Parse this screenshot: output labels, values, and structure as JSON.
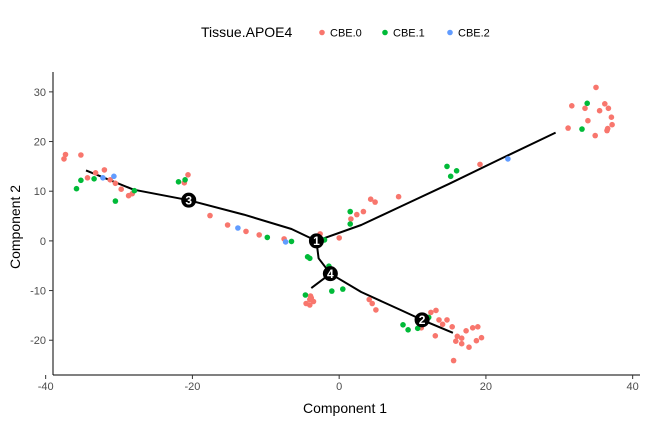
{
  "chart_data": {
    "type": "scatter",
    "xlabel": "Component 1",
    "ylabel": "Component 2",
    "xlim": [
      -39,
      41
    ],
    "ylim": [
      -27,
      34
    ],
    "xticks": [
      -40,
      -20,
      0,
      20,
      40
    ],
    "yticks": [
      -20,
      -10,
      0,
      10,
      20,
      30
    ],
    "grid": false,
    "legend": {
      "title": "Tissue.APOE4",
      "position": "top",
      "entries": [
        {
          "label": "CBE.0",
          "color": "#F8766D"
        },
        {
          "label": "CBE.1",
          "color": "#00BA38"
        },
        {
          "label": "CBE.2",
          "color": "#619CFF"
        }
      ]
    },
    "series": [
      {
        "name": "CBE.0",
        "color": "#F8766D",
        "points": [
          [
            -37.5,
            16.5
          ],
          [
            -37.3,
            17.4
          ],
          [
            -35.2,
            17.3
          ],
          [
            -34.3,
            12.7
          ],
          [
            -33.2,
            13.7
          ],
          [
            -32.0,
            14.3
          ],
          [
            -31.2,
            12.3
          ],
          [
            -30.5,
            11.6
          ],
          [
            -29.7,
            10.4
          ],
          [
            -28.7,
            9.1
          ],
          [
            -28.2,
            9.5
          ],
          [
            -20.6,
            13.3
          ],
          [
            -21.1,
            11.7
          ],
          [
            -17.6,
            5.1
          ],
          [
            -15.2,
            3.2
          ],
          [
            -12.7,
            1.9
          ],
          [
            -10.9,
            1.2
          ],
          [
            -7.5,
            0.4
          ],
          [
            -3.9,
            -11.1
          ],
          [
            -4.0,
            -11.8
          ],
          [
            -4.5,
            -12.6
          ],
          [
            -4.0,
            -12.9
          ],
          [
            -3.5,
            -12.2
          ],
          [
            -3.8,
            -11.5
          ],
          [
            -2.6,
            1.4
          ],
          [
            0.0,
            0.6
          ],
          [
            1.6,
            4.4
          ],
          [
            2.4,
            5.3
          ],
          [
            3.3,
            5.9
          ],
          [
            4.3,
            8.4
          ],
          [
            4.9,
            7.8
          ],
          [
            4.1,
            -11.8
          ],
          [
            4.5,
            -12.6
          ],
          [
            5.0,
            -13.9
          ],
          [
            8.1,
            8.9
          ],
          [
            19.2,
            15.4
          ],
          [
            31.2,
            22.7
          ],
          [
            31.7,
            27.2
          ],
          [
            33.5,
            26.7
          ],
          [
            33.9,
            24.2
          ],
          [
            35.0,
            30.9
          ],
          [
            36.2,
            27.6
          ],
          [
            35.5,
            26.2
          ],
          [
            36.7,
            26.7
          ],
          [
            37.1,
            24.9
          ],
          [
            37.2,
            23.4
          ],
          [
            36.5,
            22.2
          ],
          [
            36.6,
            22.6
          ],
          [
            34.9,
            21.2
          ],
          [
            11.7,
            -15.3
          ],
          [
            12.5,
            -14.4
          ],
          [
            13.2,
            -14.0
          ],
          [
            13.6,
            -15.9
          ],
          [
            14.1,
            -16.8
          ],
          [
            14.7,
            -15.9
          ],
          [
            13.1,
            -19.1
          ],
          [
            15.4,
            -17.3
          ],
          [
            16.1,
            -19.2
          ],
          [
            16.7,
            -19.6
          ],
          [
            17.3,
            -18.1
          ],
          [
            18.2,
            -17.5
          ],
          [
            18.9,
            -17.3
          ],
          [
            16.7,
            -20.7
          ],
          [
            15.9,
            -20.2
          ],
          [
            18.7,
            -20.1
          ],
          [
            19.4,
            -19.5
          ],
          [
            17.7,
            -21.4
          ],
          [
            15.6,
            -24.1
          ],
          [
            11.2,
            -17.5
          ]
        ]
      },
      {
        "name": "CBE.1",
        "color": "#00BA38",
        "points": [
          [
            -35.8,
            10.5
          ],
          [
            -35.2,
            12.2
          ],
          [
            -33.4,
            12.5
          ],
          [
            -30.5,
            8.0
          ],
          [
            -27.9,
            10.1
          ],
          [
            -21.9,
            11.9
          ],
          [
            -21.0,
            12.3
          ],
          [
            -9.8,
            0.7
          ],
          [
            -6.5,
            -0.1
          ],
          [
            -4.6,
            -10.9
          ],
          [
            -4.3,
            -3.2
          ],
          [
            -4.0,
            -3.5
          ],
          [
            -2.7,
            0.5
          ],
          [
            -2.0,
            0.2
          ],
          [
            -1.4,
            -5.1
          ],
          [
            -1.0,
            -10.1
          ],
          [
            0.5,
            -9.7
          ],
          [
            1.5,
            5.9
          ],
          [
            1.5,
            3.4
          ],
          [
            14.7,
            15.0
          ],
          [
            15.2,
            13.0
          ],
          [
            16.0,
            14.1
          ],
          [
            8.7,
            -16.9
          ],
          [
            9.4,
            -17.9
          ],
          [
            10.7,
            -17.6
          ],
          [
            11.2,
            -16.2
          ],
          [
            12.2,
            -15.4
          ],
          [
            33.1,
            22.5
          ],
          [
            33.8,
            27.7
          ]
        ]
      },
      {
        "name": "CBE.2",
        "color": "#619CFF",
        "points": [
          [
            -32.2,
            12.7
          ],
          [
            -30.7,
            13.0
          ],
          [
            -13.8,
            2.6
          ],
          [
            -7.3,
            -0.2
          ],
          [
            23.0,
            16.5
          ]
        ]
      }
    ],
    "trajectory": [
      [
        [
          -34.5,
          14.2
        ],
        [
          -28.0,
          10.3
        ],
        [
          -20.5,
          8.2
        ],
        [
          -13.0,
          5.3
        ],
        [
          -6.5,
          2.4
        ],
        [
          -3.1,
          0.0
        ]
      ],
      [
        [
          -3.1,
          0.0
        ],
        [
          3.0,
          3.2
        ],
        [
          8.5,
          7.0
        ],
        [
          15.0,
          11.5
        ],
        [
          22.0,
          16.5
        ],
        [
          29.5,
          21.8
        ]
      ],
      [
        [
          -3.1,
          0.0
        ],
        [
          -2.8,
          -3.5
        ],
        [
          -1.2,
          -6.6
        ]
      ],
      [
        [
          -1.2,
          -6.6
        ],
        [
          -3.8,
          -9.5
        ]
      ],
      [
        [
          -1.2,
          -6.6
        ],
        [
          3.0,
          -10.3
        ],
        [
          8.5,
          -14.0
        ],
        [
          11.3,
          -15.9
        ],
        [
          15.5,
          -18.5
        ]
      ]
    ],
    "nodes": [
      {
        "label": "1",
        "x": -3.1,
        "y": 0.0
      },
      {
        "label": "2",
        "x": 11.3,
        "y": -15.9
      },
      {
        "label": "3",
        "x": -20.5,
        "y": 8.2
      },
      {
        "label": "4",
        "x": -1.2,
        "y": -6.6
      }
    ]
  }
}
